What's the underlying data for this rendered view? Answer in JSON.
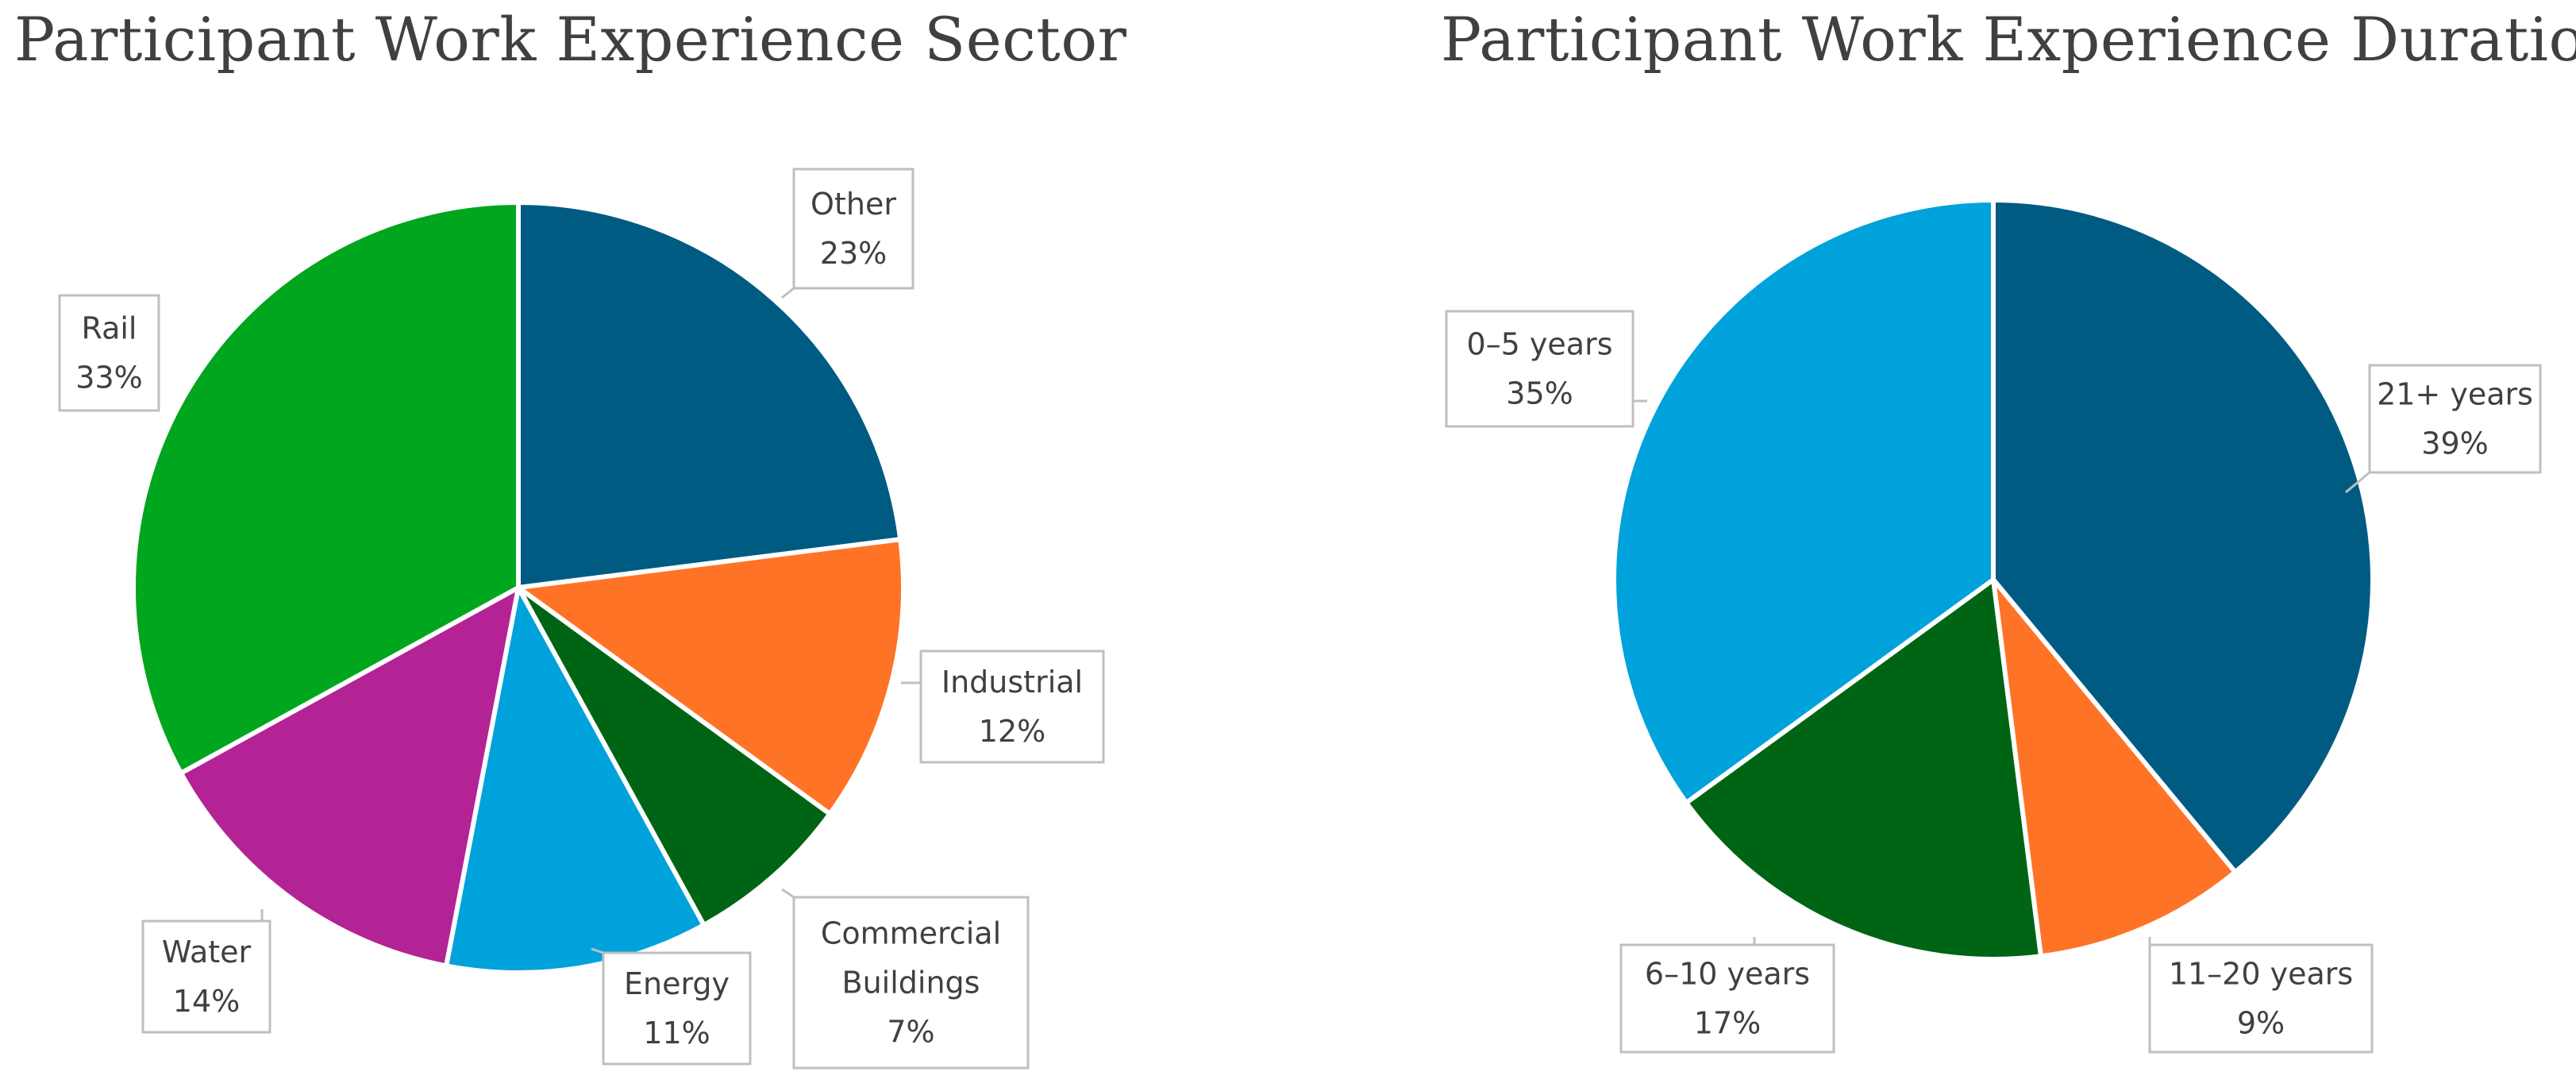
{
  "chart_data": [
    {
      "type": "pie",
      "title": "Participant Work Experience Sector",
      "start_angle_deg": 0,
      "direction": "clockwise",
      "slices": [
        {
          "label": "Other",
          "value": 23,
          "display": "23%",
          "color": "#005B82"
        },
        {
          "label": "Industrial",
          "value": 12,
          "display": "12%",
          "color": "#FF7327"
        },
        {
          "label": "Commercial Buildings",
          "value": 7,
          "display": "7%",
          "color": "#006415"
        },
        {
          "label": "Energy",
          "value": 11,
          "display": "11%",
          "color": "#00A2DB"
        },
        {
          "label": "Water",
          "value": 14,
          "display": "14%",
          "color": "#B32395"
        },
        {
          "label": "Rail",
          "value": 33,
          "display": "33%",
          "color": "#00A61E"
        }
      ]
    },
    {
      "type": "pie",
      "title": "Participant Work Experience Duration",
      "start_angle_deg": 0,
      "direction": "clockwise",
      "slices": [
        {
          "label": "21+ years",
          "value": 39,
          "display": "39%",
          "color": "#005B82"
        },
        {
          "label": "11–20 years",
          "value": 9,
          "display": "9%",
          "color": "#FF7327"
        },
        {
          "label": "6–10 years",
          "value": 17,
          "display": "17%",
          "color": "#006415"
        },
        {
          "label": "0–5 years",
          "value": 35,
          "display": "35%",
          "color": "#00A2DB"
        }
      ]
    }
  ]
}
